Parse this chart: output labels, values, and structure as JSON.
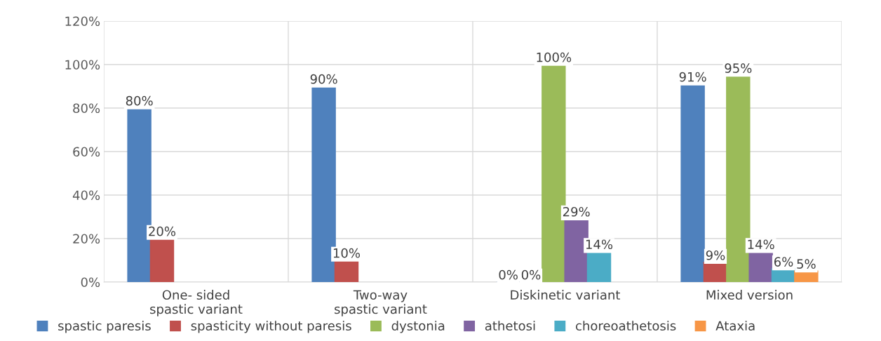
{
  "chart_data": {
    "type": "bar",
    "categories": [
      "One- sided\nspastic variant",
      "Two-way\nspastic variant",
      "Diskinetic variant",
      "Mixed version"
    ],
    "series": [
      {
        "name": "spastic paresis",
        "color": "#4f81bd",
        "values": [
          80,
          90,
          0,
          91
        ],
        "value_labels": [
          "80%",
          "90%",
          "0%",
          "91%"
        ]
      },
      {
        "name": "spasticity without paresis",
        "color": "#c0504d",
        "values": [
          20,
          10,
          0,
          9
        ],
        "value_labels": [
          "20%",
          "10%",
          "0%",
          "9%"
        ]
      },
      {
        "name": "dystonia",
        "color": "#9bbb59",
        "values": [
          null,
          null,
          100,
          95
        ],
        "value_labels": [
          null,
          null,
          "100%",
          "95%"
        ]
      },
      {
        "name": "athetosi",
        "color": "#8064a2",
        "values": [
          null,
          null,
          29,
          14
        ],
        "value_labels": [
          null,
          null,
          "29%",
          "14%"
        ]
      },
      {
        "name": "choreoathetosis",
        "color": "#4bacc6",
        "values": [
          null,
          null,
          14,
          6
        ],
        "value_labels": [
          null,
          null,
          "14%",
          "6%"
        ]
      },
      {
        "name": "Ataxia",
        "color": "#f79646",
        "values": [
          null,
          null,
          null,
          5
        ],
        "value_labels": [
          null,
          null,
          null,
          "5%"
        ]
      }
    ],
    "ylim": [
      0,
      120
    ],
    "yticks": [
      {
        "value": 0,
        "label": "0%"
      },
      {
        "value": 20,
        "label": "20%"
      },
      {
        "value": 40,
        "label": "40%"
      },
      {
        "value": 60,
        "label": "60%"
      },
      {
        "value": 80,
        "label": "80%"
      },
      {
        "value": 100,
        "label": "100%"
      },
      {
        "value": 120,
        "label": "120%"
      }
    ],
    "grid": true,
    "legend": "bottom"
  }
}
